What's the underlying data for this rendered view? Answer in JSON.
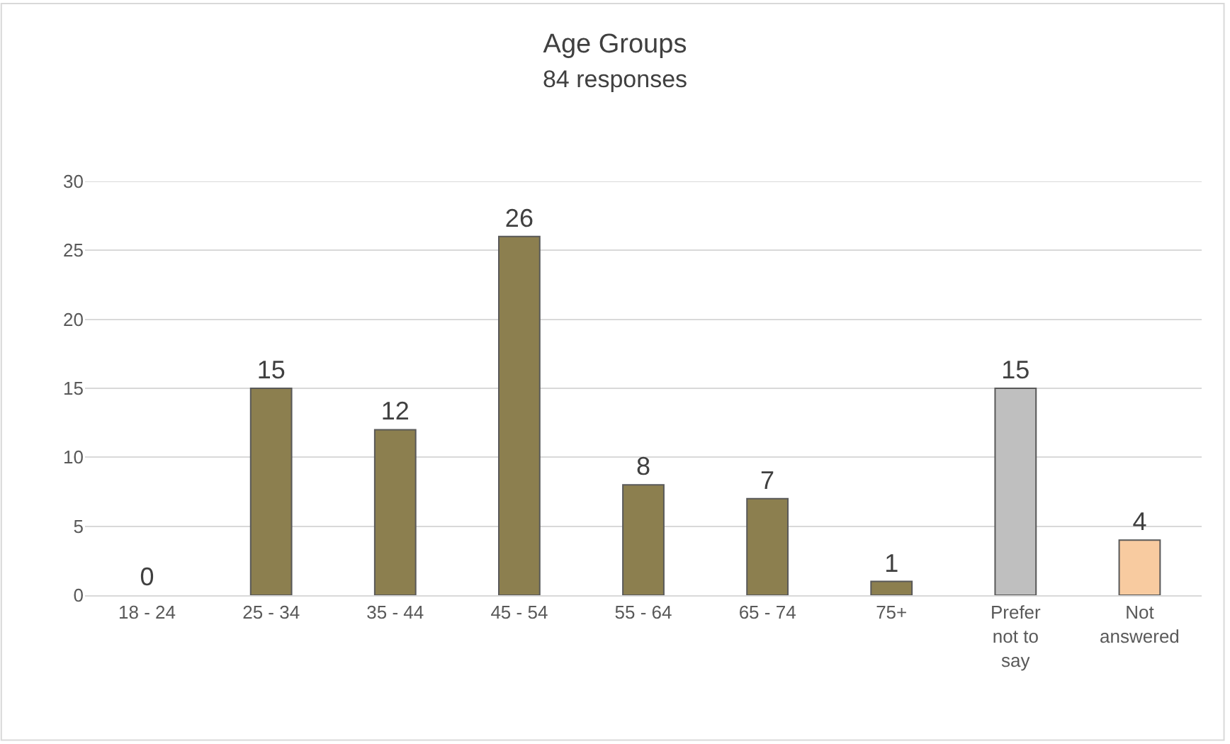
{
  "chart_data": {
    "type": "bar",
    "title": "Age Groups",
    "subtitle": "84 responses",
    "categories": [
      "18 - 24",
      "25 - 34",
      "35 - 44",
      "45 - 54",
      "55 - 64",
      "65 - 74",
      "75+",
      "Prefer not to say",
      "Not answered"
    ],
    "values": [
      0,
      15,
      12,
      26,
      8,
      7,
      1,
      15,
      4
    ],
    "colors": [
      "#8c7f4f",
      "#8c7f4f",
      "#8c7f4f",
      "#8c7f4f",
      "#8c7f4f",
      "#8c7f4f",
      "#8c7f4f",
      "#bfbfbf",
      "#f8cba0"
    ],
    "ylim": [
      0,
      30
    ],
    "yticks": [
      0,
      5,
      10,
      15,
      20,
      25,
      30
    ],
    "grid": "y",
    "data_labels": true,
    "legend": false
  }
}
